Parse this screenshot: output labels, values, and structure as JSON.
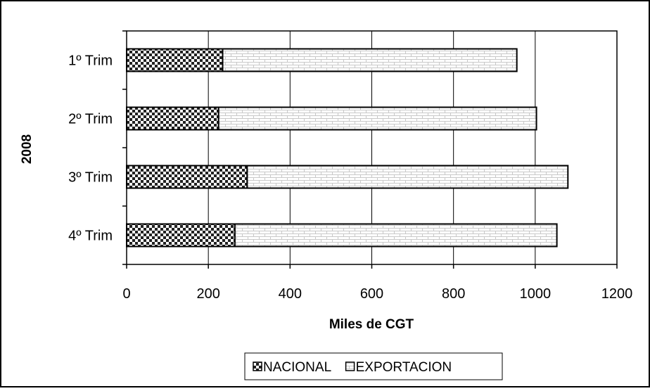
{
  "chart_data": {
    "type": "bar",
    "orientation": "horizontal",
    "stacked": true,
    "categories": [
      "1º Trim",
      "2º Trim",
      "3º Trim",
      "4º Trim"
    ],
    "series": [
      {
        "name": "NACIONAL",
        "values": [
          235,
          225,
          295,
          265
        ],
        "pattern": "checkerboard",
        "color": "#333333"
      },
      {
        "name": "EXPORTACION",
        "values": [
          720,
          778,
          785,
          788
        ],
        "pattern": "brick",
        "color": "#bfbfbf"
      }
    ],
    "xlabel": "Miles de CGT",
    "ylabel": "2008",
    "xlim": [
      0,
      1200
    ],
    "xticks": [
      0,
      200,
      400,
      600,
      800,
      1000,
      1200
    ],
    "grid": "vertical",
    "legend": "bottom-center"
  }
}
